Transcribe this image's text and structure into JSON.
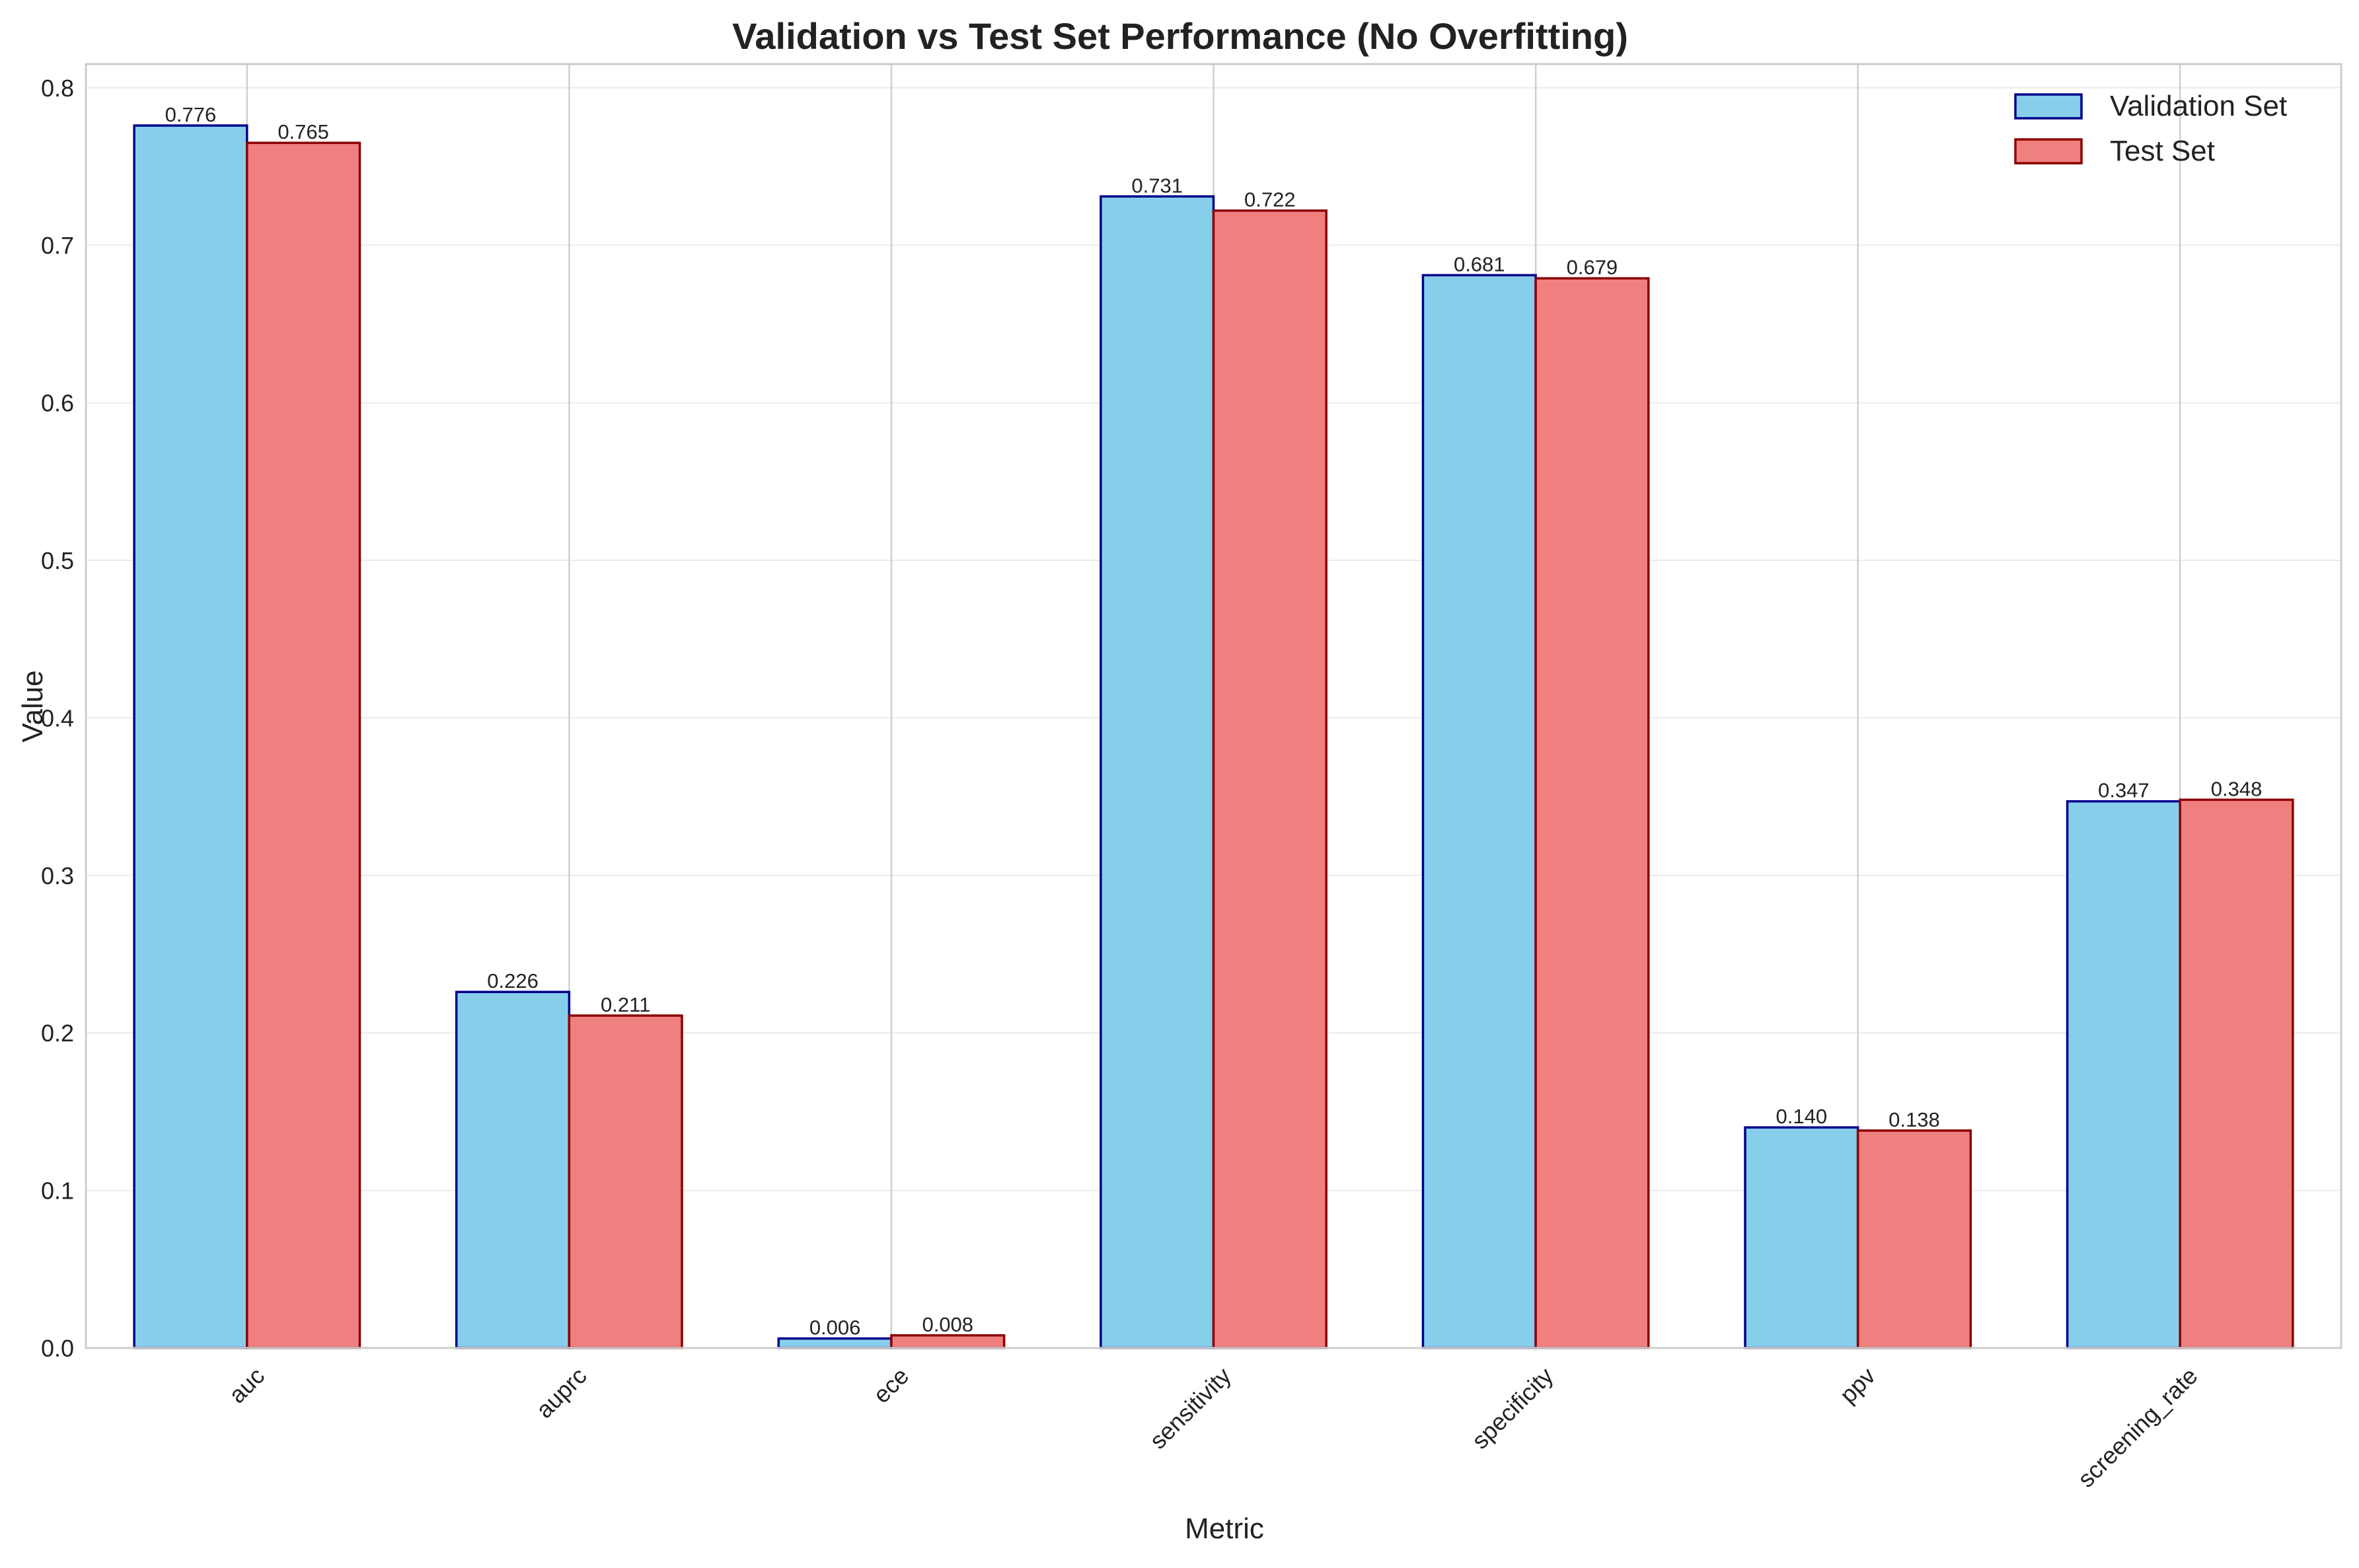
{
  "chart_data": {
    "type": "bar",
    "title": "Validation vs Test Set Performance (No Overfitting)",
    "xlabel": "Metric",
    "ylabel": "Value",
    "categories": [
      "auc",
      "auprc",
      "ece",
      "sensitivity",
      "specificity",
      "ppv",
      "screening_rate"
    ],
    "series": [
      {
        "name": "Validation Set",
        "values": [
          0.776,
          0.226,
          0.006,
          0.731,
          0.681,
          0.14,
          0.347
        ],
        "labels": [
          "0.776",
          "0.226",
          "0.006",
          "0.731",
          "0.681",
          "0.140",
          "0.347"
        ],
        "fill": "#87CEEB",
        "edge": "#00008B"
      },
      {
        "name": "Test Set",
        "values": [
          0.765,
          0.211,
          0.008,
          0.722,
          0.679,
          0.138,
          0.348
        ],
        "labels": [
          "0.765",
          "0.211",
          "0.008",
          "0.722",
          "0.679",
          "0.138",
          "0.348"
        ],
        "fill": "#F08080",
        "edge": "#8B0000"
      }
    ],
    "ylim": [
      0,
      0.815
    ],
    "yticks": [
      "0.0",
      "0.1",
      "0.2",
      "0.3",
      "0.4",
      "0.5",
      "0.6",
      "0.7",
      "0.8"
    ],
    "grid": true,
    "legend_position": "top-right"
  }
}
